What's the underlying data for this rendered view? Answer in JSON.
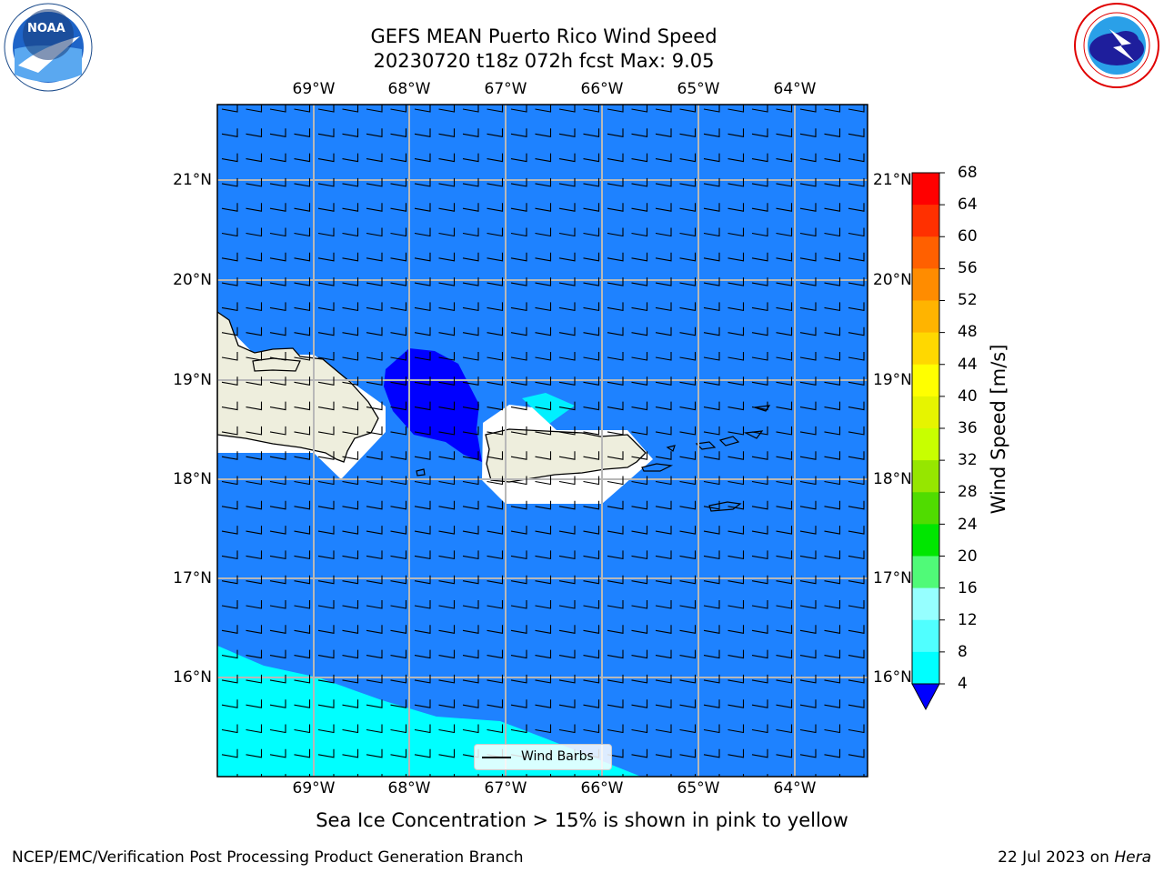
{
  "header": {
    "title_line1": "GEFS MEAN Puerto Rico Wind Speed",
    "title_line2": "20230720 t18z 072h fcst   Max: 9.05"
  },
  "logos": {
    "left": "NOAA",
    "left_ring": "NATIONAL OCEANIC AND ATMOSPHERIC ADMINISTRATION · U.S. DEPARTMENT OF COMMERCE",
    "right_ring": "NATIONAL WEATHER SERVICE"
  },
  "map": {
    "lon_ticks": [
      "69°W",
      "68°W",
      "67°W",
      "66°W",
      "65°W",
      "64°W"
    ],
    "lat_ticks": [
      "21°N",
      "20°N",
      "19°N",
      "18°N",
      "17°N",
      "16°N"
    ],
    "legend_label": "Wind Barbs",
    "colors": {
      "ocean_main": "#1e82ff",
      "weak_wind": "#0000ff",
      "light_cyan": "#00e8ff",
      "land": "#eeeedd",
      "land_mask": "#ffffff"
    }
  },
  "colorbar": {
    "title": "Wind Speed [m/s]",
    "levels": [
      "68",
      "64",
      "60",
      "56",
      "52",
      "48",
      "44",
      "40",
      "36",
      "32",
      "28",
      "24",
      "20",
      "16",
      "12",
      "8",
      "4"
    ],
    "colors": [
      "#ff0000",
      "#ff3000",
      "#ff6000",
      "#ff8c00",
      "#ffb400",
      "#ffd800",
      "#ffff00",
      "#e6f400",
      "#c8ff00",
      "#96e600",
      "#50dc00",
      "#00e600",
      "#50fa78",
      "#96ffff",
      "#50ffff",
      "#00ffff",
      "#1e82ff"
    ],
    "under_color": "#0000ff"
  },
  "footer": {
    "note": "Sea Ice Concentration > 15% is shown in pink to yellow",
    "left": "NCEP/EMC/Verification Post Processing Product Generation Branch",
    "right_date": "22 Jul 2023 on ",
    "right_host": "Hera"
  }
}
